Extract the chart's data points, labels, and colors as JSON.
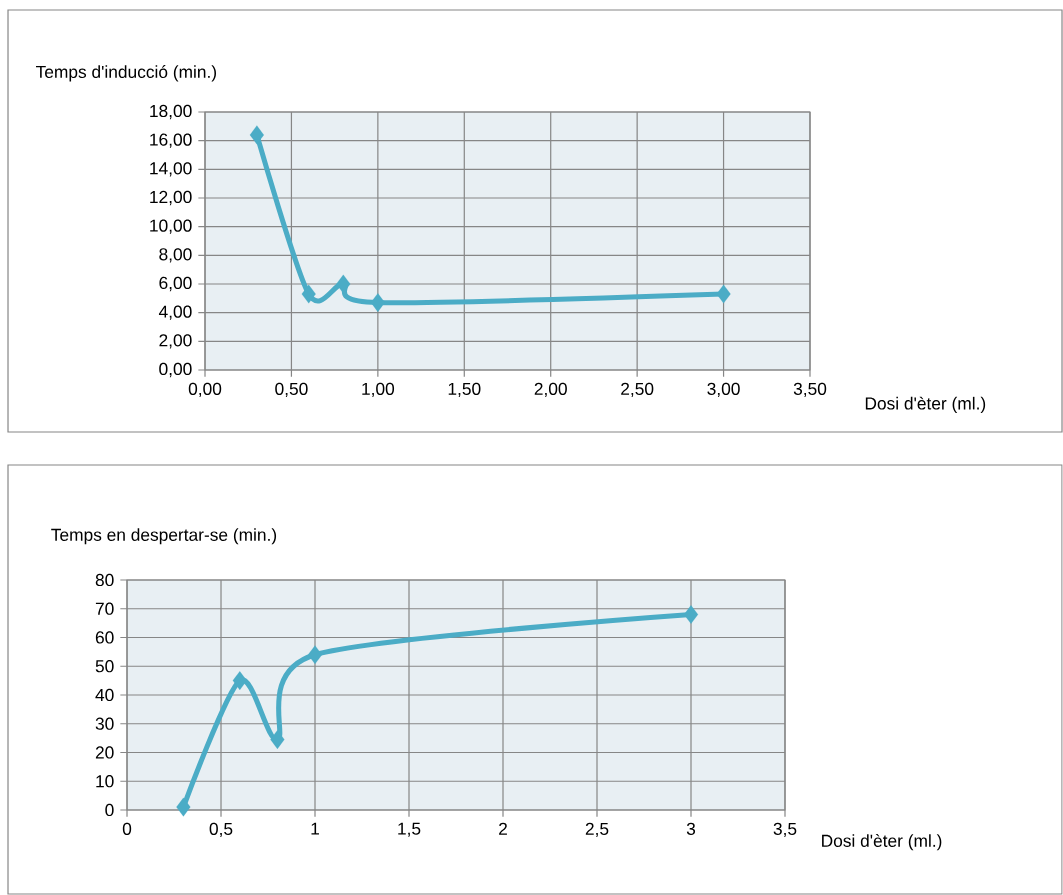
{
  "chart_data": [
    {
      "type": "line",
      "ylabel": "Temps d'inducció (min.)",
      "xlabel": "Dosi d'èter (ml.)",
      "x": [
        0.3,
        0.6,
        0.8,
        1.0,
        3.0
      ],
      "series": [
        {
          "color": "#4bacc6",
          "values": [
            16.4,
            5.3,
            6.0,
            4.7,
            5.3
          ]
        }
      ],
      "xlim": [
        0,
        3.5
      ],
      "ylim": [
        0,
        18
      ],
      "xticks": [
        {
          "value": 0,
          "label": "0,00"
        },
        {
          "value": 0.5,
          "label": "0,50"
        },
        {
          "value": 1,
          "label": "1,00"
        },
        {
          "value": 1.5,
          "label": "1,50"
        },
        {
          "value": 2,
          "label": "2,00"
        },
        {
          "value": 2.5,
          "label": "2,50"
        },
        {
          "value": 3,
          "label": "3,00"
        },
        {
          "value": 3.5,
          "label": "3,50"
        }
      ],
      "yticks": [
        {
          "value": 0,
          "label": "0,00"
        },
        {
          "value": 2,
          "label": "2,00"
        },
        {
          "value": 4,
          "label": "4,00"
        },
        {
          "value": 6,
          "label": "6,00"
        },
        {
          "value": 8,
          "label": "8,00"
        },
        {
          "value": 10,
          "label": "10,00"
        },
        {
          "value": 12,
          "label": "12,00"
        },
        {
          "value": 14,
          "label": "14,00"
        },
        {
          "value": 16,
          "label": "16,00"
        },
        {
          "value": 18,
          "label": "18,00"
        }
      ],
      "grid": true,
      "marker": "diamond"
    },
    {
      "type": "line",
      "ylabel": "Temps en despertar-se (min.)",
      "xlabel": "Dosi d'èter (ml.)",
      "x": [
        0.3,
        0.6,
        0.8,
        1.0,
        3.0
      ],
      "series": [
        {
          "color": "#4bacc6",
          "values": [
            1,
            45,
            24.5,
            54,
            68
          ]
        }
      ],
      "xlim": [
        0,
        3.5
      ],
      "ylim": [
        0,
        80
      ],
      "xticks": [
        0,
        {
          "value": 0.5,
          "label": "0,5"
        },
        1,
        {
          "value": 1.5,
          "label": "1,5"
        },
        2,
        {
          "value": 2.5,
          "label": "2,5"
        },
        3,
        {
          "value": 3.5,
          "label": "3,5"
        }
      ],
      "yticks": [
        0,
        10,
        20,
        30,
        40,
        50,
        60,
        70,
        80
      ],
      "grid": true,
      "marker": "diamond"
    }
  ]
}
